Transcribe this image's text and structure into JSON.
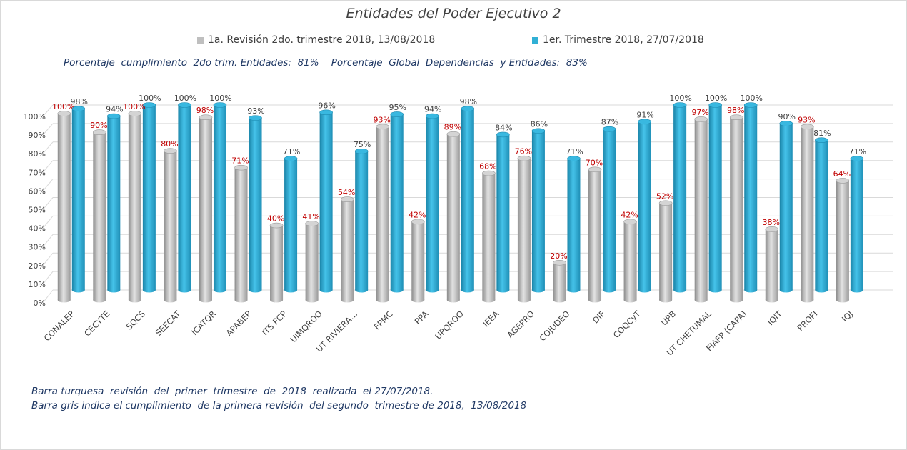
{
  "title": "Entidades del Poder Ejecutivo 2",
  "legend": {
    "gray": "1a. Revisión 2do. trimestre 2018, 13/08/2018",
    "blue": "1er. Trimestre 2018, 27/07/2018"
  },
  "subtitle": "Porcentaje  cumplimiento  2do trim. Entidades:  81%    Porcentaje  Global  Dependencias  y Entidades:  83%",
  "notes": [
    "Barra turquesa  revisión  del  primer  trimestre  de  2018  realizada  el 27/07/2018.",
    "Barra gris indica el cumplimiento  de la primera revisión  del segundo  trimestre de 2018,  13/08/2018"
  ],
  "colors": {
    "gray": "#bfbfbf",
    "blue": "#31b0d5",
    "gray_label": "#c00000",
    "blue_label": "#404040",
    "text": "#404040",
    "note": "#1f3864"
  },
  "chart_data": {
    "type": "bar",
    "title": "Entidades del Poder Ejecutivo 2",
    "xlabel": "",
    "ylabel": "",
    "ylim": [
      0,
      100
    ],
    "yticks": [
      "0%",
      "10%",
      "20%",
      "30%",
      "40%",
      "50%",
      "60%",
      "70%",
      "80%",
      "90%",
      "100%"
    ],
    "grid": true,
    "legend_position": "top",
    "categories": [
      "CONALEP",
      "CECYTE",
      "SQCS",
      "SEECAT",
      "ICATQR",
      "APABEP",
      "ITS FCP",
      "UIMQROO",
      "UT RIVIERA…",
      "FPMC",
      "PPA",
      "UPQROO",
      "IEEA",
      "AGEPRO",
      "COJUDEQ",
      "DIF",
      "COQCyT",
      "UPB",
      "UT CHETUMAL",
      "FIAFP (CAPA)",
      "IQIT",
      "PROFI",
      "IQJ"
    ],
    "series": [
      {
        "name": "1a. Revisión 2do. trimestre 2018, 13/08/2018",
        "values": [
          100,
          90,
          100,
          80,
          98,
          71,
          40,
          41,
          54,
          93,
          42,
          89,
          68,
          76,
          20,
          70,
          42,
          52,
          97,
          98,
          38,
          93,
          64
        ],
        "labels": [
          "100%",
          "90%",
          "100%",
          "80%",
          "98%",
          "71%",
          "40%",
          "41%",
          "54%",
          "93%",
          "42%",
          "89%",
          "68%",
          "76%",
          "20%",
          "70%",
          "42%",
          "52%",
          "97%",
          "98%",
          "38%",
          "93%",
          "64%"
        ]
      },
      {
        "name": "1er. Trimestre 2018, 27/07/2018",
        "values": [
          98,
          94,
          100,
          100,
          100,
          93,
          71,
          96,
          75,
          95,
          94,
          98,
          84,
          86,
          71,
          87,
          91,
          100,
          100,
          100,
          90,
          81,
          71
        ],
        "labels": [
          "98%",
          "94%",
          "100%",
          "100%",
          "100%",
          "93%",
          "71%",
          "96%",
          "75%",
          "95%",
          "94%",
          "98%",
          "84%",
          "86%",
          "71%",
          "87%",
          "91%",
          "100%",
          "100%",
          "100%",
          "90%",
          "81%",
          "71%"
        ]
      }
    ]
  }
}
